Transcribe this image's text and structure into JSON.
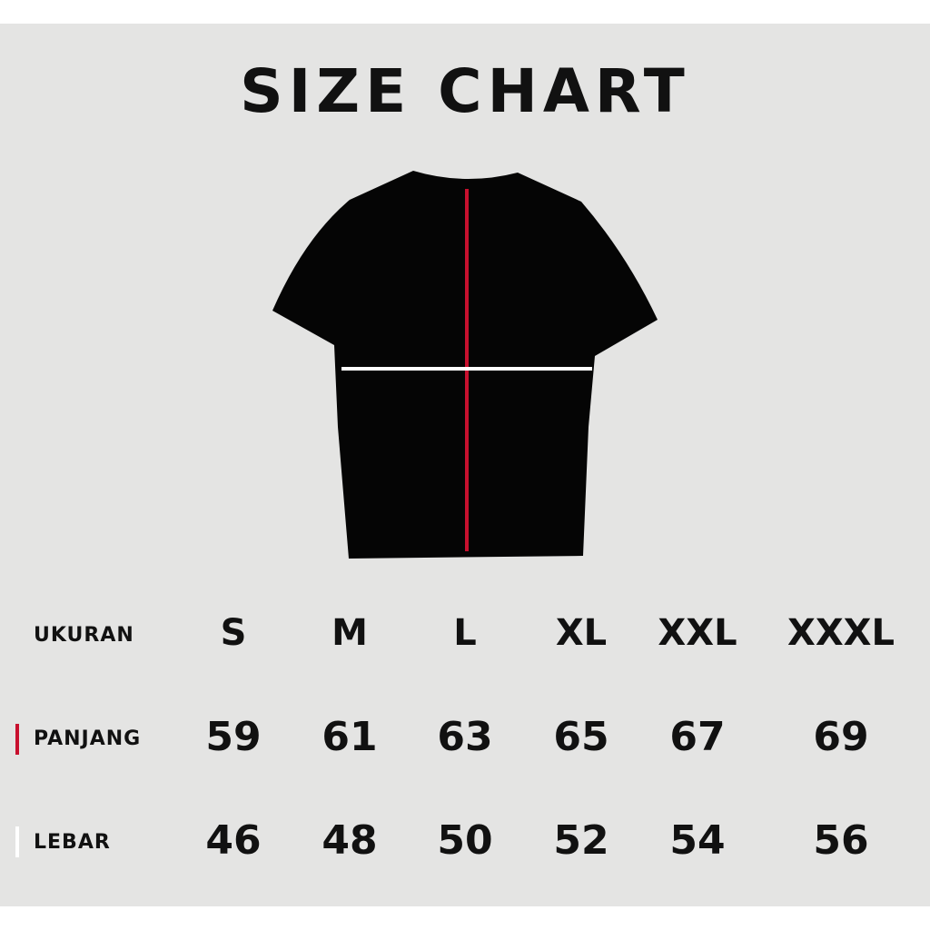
{
  "title": "SIZE CHART",
  "colors": {
    "length_marker": "#c8102e",
    "width_marker": "#ffffff",
    "shirt": "#050505",
    "background": "#e4e4e3"
  },
  "table": {
    "header_label": "UKURAN",
    "sizes": [
      "S",
      "M",
      "L",
      "XL",
      "XXL",
      "XXXL"
    ],
    "rows": [
      {
        "label": "PANJANG",
        "marker": "red",
        "values": [
          "59",
          "61",
          "63",
          "65",
          "67",
          "69"
        ]
      },
      {
        "label": "LEBAR",
        "marker": "white",
        "values": [
          "46",
          "48",
          "50",
          "52",
          "54",
          "56"
        ]
      }
    ]
  }
}
